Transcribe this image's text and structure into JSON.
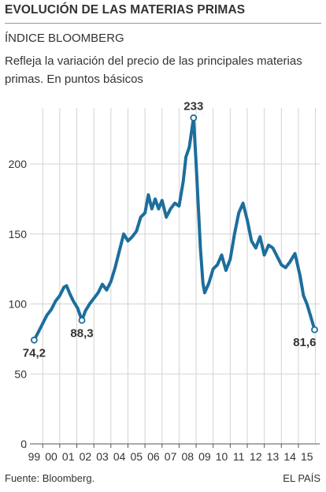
{
  "header": {
    "title": "EVOLUCIÓN DE LAS MATERIAS PRIMAS",
    "subtitle": "ÍNDICE BLOOMBERG",
    "description": "Refleja la variación del precio de las principales materias primas. En puntos básicos"
  },
  "footer": {
    "source": "Fuente: Bloomberg.",
    "brand": "EL PAÍS"
  },
  "colors": {
    "line": "#1c6e9c",
    "grid": "#d3d3d3",
    "axis": "#555555",
    "text": "#333333"
  },
  "chart_data": {
    "type": "line",
    "title": "EVOLUCIÓN DE LAS MATERIAS PRIMAS",
    "subtitle": "ÍNDICE BLOOMBERG",
    "ylim": [
      0,
      240
    ],
    "xlim": [
      1998.75,
      2015.75
    ],
    "yticks": [
      0,
      50,
      100,
      150,
      200
    ],
    "ytick_labels": [
      "0",
      "50",
      "100",
      "150",
      "200"
    ],
    "xticks": [
      1999,
      2000,
      2001,
      2002,
      2003,
      2004,
      2005,
      2006,
      2007,
      2008,
      2009,
      2010,
      2011,
      2012,
      2013,
      2014,
      2015
    ],
    "xtick_labels": [
      "99",
      "00",
      "01",
      "02",
      "03",
      "04",
      "05",
      "06",
      "07",
      "08",
      "09",
      "10",
      "11",
      "12",
      "13",
      "14",
      "15"
    ],
    "grid": true,
    "series": [
      {
        "values": [
          [
            1999.0,
            74.2
          ],
          [
            1999.25,
            80
          ],
          [
            1999.5,
            86
          ],
          [
            1999.75,
            92
          ],
          [
            2000.0,
            96
          ],
          [
            2000.25,
            102
          ],
          [
            2000.5,
            106
          ],
          [
            2000.75,
            112
          ],
          [
            2000.9,
            113
          ],
          [
            2001.1,
            107
          ],
          [
            2001.3,
            102
          ],
          [
            2001.55,
            97
          ],
          [
            2001.8,
            88.3
          ],
          [
            2002.0,
            95
          ],
          [
            2002.25,
            100
          ],
          [
            2002.5,
            104
          ],
          [
            2002.75,
            108
          ],
          [
            2003.0,
            114
          ],
          [
            2003.25,
            110
          ],
          [
            2003.5,
            116
          ],
          [
            2003.75,
            126
          ],
          [
            2004.0,
            138
          ],
          [
            2004.25,
            150
          ],
          [
            2004.5,
            145
          ],
          [
            2004.75,
            148
          ],
          [
            2005.0,
            152
          ],
          [
            2005.25,
            162
          ],
          [
            2005.5,
            165
          ],
          [
            2005.7,
            178
          ],
          [
            2005.9,
            168
          ],
          [
            2006.1,
            175
          ],
          [
            2006.3,
            168
          ],
          [
            2006.5,
            174
          ],
          [
            2006.75,
            162
          ],
          [
            2007.0,
            168
          ],
          [
            2007.25,
            172
          ],
          [
            2007.5,
            170
          ],
          [
            2007.75,
            188
          ],
          [
            2007.9,
            205
          ],
          [
            2008.1,
            212
          ],
          [
            2008.35,
            233
          ],
          [
            2008.5,
            200
          ],
          [
            2008.75,
            140
          ],
          [
            2008.9,
            115
          ],
          [
            2009.0,
            108
          ],
          [
            2009.25,
            115
          ],
          [
            2009.5,
            125
          ],
          [
            2009.75,
            128
          ],
          [
            2010.0,
            135
          ],
          [
            2010.25,
            124
          ],
          [
            2010.5,
            132
          ],
          [
            2010.75,
            150
          ],
          [
            2011.0,
            165
          ],
          [
            2011.25,
            172
          ],
          [
            2011.5,
            160
          ],
          [
            2011.75,
            145
          ],
          [
            2012.0,
            140
          ],
          [
            2012.25,
            148
          ],
          [
            2012.5,
            135
          ],
          [
            2012.75,
            142
          ],
          [
            2013.0,
            140
          ],
          [
            2013.25,
            134
          ],
          [
            2013.5,
            128
          ],
          [
            2013.75,
            126
          ],
          [
            2014.0,
            130
          ],
          [
            2014.3,
            136
          ],
          [
            2014.6,
            120
          ],
          [
            2014.8,
            106
          ],
          [
            2015.0,
            100
          ],
          [
            2015.2,
            92
          ],
          [
            2015.45,
            81.6
          ]
        ]
      }
    ],
    "annotations": [
      {
        "x": 2008.35,
        "y": 233,
        "text": "233",
        "position": "above"
      },
      {
        "x": 1999.0,
        "y": 74.2,
        "text": "74,2",
        "position": "below"
      },
      {
        "x": 2001.8,
        "y": 88.3,
        "text": "88,3",
        "position": "below"
      },
      {
        "x": 2015.45,
        "y": 81.6,
        "text": "81,6",
        "position": "below"
      }
    ]
  }
}
